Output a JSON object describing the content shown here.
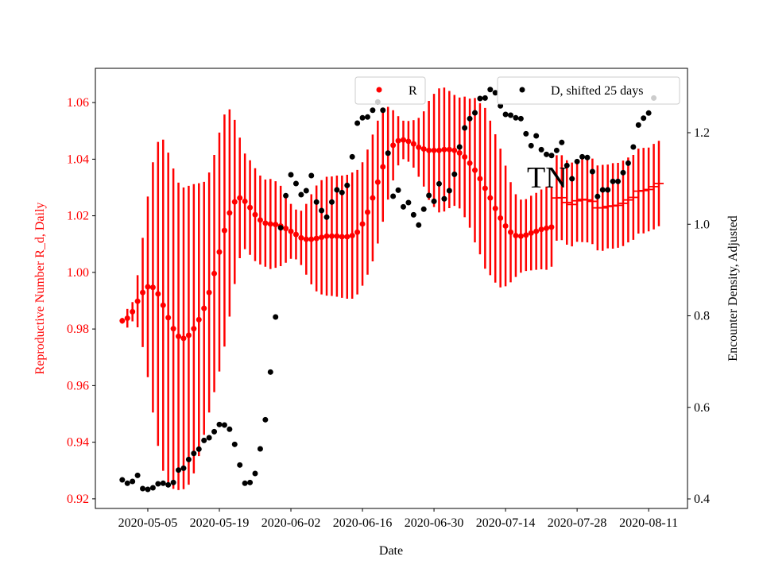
{
  "chart_data": {
    "type": "scatter",
    "annotation": "TN",
    "xlabel": "Date",
    "ylabel_left": "Reproductive Number R_d, Daily",
    "ylabel_right": "Encounter Density, Adjusted",
    "start_date": "2020-04-30",
    "xlim_days": [
      -5.26,
      110.6
    ],
    "ylim_left": [
      0.9166,
      1.0721
    ],
    "ylim_right": [
      0.3792,
      1.3406
    ],
    "x_ticks": [
      {
        "day": 5,
        "label": "2020-05-05"
      },
      {
        "day": 19,
        "label": "2020-05-19"
      },
      {
        "day": 33,
        "label": "2020-06-02"
      },
      {
        "day": 47,
        "label": "2020-06-16"
      },
      {
        "day": 61,
        "label": "2020-06-30"
      },
      {
        "day": 75,
        "label": "2020-07-14"
      },
      {
        "day": 89,
        "label": "2020-07-28"
      },
      {
        "day": 103,
        "label": "2020-08-11"
      }
    ],
    "y_ticks_left": [
      "0.92",
      "0.94",
      "0.96",
      "0.98",
      "1.00",
      "1.02",
      "1.04",
      "1.06"
    ],
    "y_ticks_right": [
      "0.4",
      "0.6",
      "0.8",
      "1.0",
      "1.2"
    ],
    "legend": [
      {
        "label": "R",
        "color": "#ff0000",
        "placement": "top-center"
      },
      {
        "label": "D, shifted 25 days",
        "color": "#000000",
        "placement": "top-right"
      }
    ],
    "series": [
      {
        "name": "R",
        "color": "#ff0000",
        "axis": "left",
        "dash_marker_from_index": 85,
        "values": [
          0.9829,
          0.9838,
          0.9861,
          0.9898,
          0.9929,
          0.9949,
          0.9947,
          0.9924,
          0.9884,
          0.984,
          0.9801,
          0.9774,
          0.9767,
          0.9778,
          0.9801,
          0.9833,
          0.9873,
          0.9929,
          0.9996,
          1.0072,
          1.0148,
          1.021,
          1.0249,
          1.0263,
          1.0251,
          1.0229,
          1.0204,
          1.0185,
          1.0174,
          1.0171,
          1.0169,
          1.0164,
          1.0155,
          1.0145,
          1.0134,
          1.0122,
          1.0117,
          1.0117,
          1.012,
          1.0124,
          1.0128,
          1.0128,
          1.0128,
          1.0126,
          1.0126,
          1.013,
          1.0142,
          1.0171,
          1.0213,
          1.0263,
          1.0319,
          1.0373,
          1.0421,
          1.0449,
          1.0465,
          1.0468,
          1.0463,
          1.0454,
          1.0442,
          1.0436,
          1.0431,
          1.0431,
          1.0431,
          1.0434,
          1.0434,
          1.0431,
          1.0422,
          1.0408,
          1.0386,
          1.0361,
          1.0331,
          1.0297,
          1.0263,
          1.0226,
          1.0192,
          1.0164,
          1.0142,
          1.013,
          1.0128,
          1.0132,
          1.0139,
          1.0145,
          1.0152,
          1.0156,
          1.016,
          1.0263,
          1.0264,
          1.0247,
          1.024,
          1.0253,
          1.0258,
          1.0256,
          1.0251,
          1.0228,
          1.0228,
          1.0233,
          1.0235,
          1.0237,
          1.0244,
          1.0256,
          1.0265,
          1.0287,
          1.0289,
          1.0293,
          1.0303,
          1.0314
        ],
        "errors": [
          0.001,
          0.0033,
          0.0034,
          0.0092,
          0.0193,
          0.0319,
          0.0442,
          0.0537,
          0.0585,
          0.0583,
          0.0566,
          0.0543,
          0.0533,
          0.0528,
          0.0511,
          0.0482,
          0.0447,
          0.0424,
          0.0419,
          0.0422,
          0.041,
          0.0366,
          0.029,
          0.0213,
          0.0169,
          0.0167,
          0.0164,
          0.0157,
          0.0154,
          0.0159,
          0.0153,
          0.0142,
          0.0121,
          0.0097,
          0.0088,
          0.0096,
          0.0125,
          0.0159,
          0.0187,
          0.0202,
          0.021,
          0.0211,
          0.0214,
          0.0216,
          0.0219,
          0.0223,
          0.022,
          0.0218,
          0.0221,
          0.0224,
          0.0217,
          0.0194,
          0.0164,
          0.0124,
          0.0087,
          0.0068,
          0.0072,
          0.0084,
          0.0104,
          0.0133,
          0.0175,
          0.02,
          0.0219,
          0.0219,
          0.0207,
          0.0196,
          0.0196,
          0.0213,
          0.0228,
          0.0255,
          0.0267,
          0.0284,
          0.0273,
          0.0262,
          0.0245,
          0.0213,
          0.0177,
          0.0146,
          0.0129,
          0.0127,
          0.0132,
          0.0136,
          0.0141,
          0.0147,
          0.014,
          0.0151,
          0.015,
          0.0149,
          0.0148,
          0.0145,
          0.0151,
          0.015,
          0.0151,
          0.015,
          0.0152,
          0.0148,
          0.0151,
          0.015,
          0.0151,
          0.015,
          0.015,
          0.015,
          0.0151,
          0.0148,
          0.0151,
          0.0151
        ]
      },
      {
        "name": "D, shifted 25 days",
        "color": "#000000",
        "axis": "right",
        "values": [
          0.4416,
          0.4342,
          0.4382,
          0.4515,
          0.4226,
          0.4208,
          0.4243,
          0.433,
          0.4342,
          0.4307,
          0.4359,
          0.463,
          0.4671,
          0.4862,
          0.4994,
          0.5088,
          0.5278,
          0.5336,
          0.5469,
          0.5626,
          0.5614,
          0.5522,
          0.5192,
          0.4741,
          0.4342,
          0.4359,
          0.4555,
          0.5093,
          0.573,
          0.6771,
          0.7974,
          0.9923,
          1.0624,
          1.108,
          1.0889,
          1.0646,
          1.0733,
          1.1063,
          1.0485,
          1.0299,
          1.0155,
          1.0485,
          1.0751,
          1.0693,
          1.0849,
          1.1474,
          1.2208,
          1.2325,
          1.2342,
          1.2491,
          1.2672,
          1.2491,
          1.1554,
          1.0612,
          1.0745,
          1.0381,
          1.0473,
          1.0207,
          0.9982,
          1.0329,
          1.0629,
          1.0502,
          1.0884,
          1.0555,
          1.0733,
          1.1092,
          1.1688,
          1.2104,
          1.2307,
          1.2434,
          1.2746,
          1.2758,
          1.2942,
          1.2873,
          1.2585,
          1.2399,
          1.2382,
          1.2325,
          1.2307,
          1.1977,
          1.1717,
          1.1931,
          1.163,
          1.1526,
          1.1502,
          1.1613,
          1.1787,
          1.1283,
          1.0993,
          1.137,
          1.1474,
          1.1457,
          1.115,
          1.0607,
          1.0751,
          1.0751,
          1.0936,
          1.0936,
          1.1127,
          1.1335,
          1.1688,
          1.2168,
          1.2318,
          1.2429,
          1.2758
        ]
      }
    ]
  }
}
